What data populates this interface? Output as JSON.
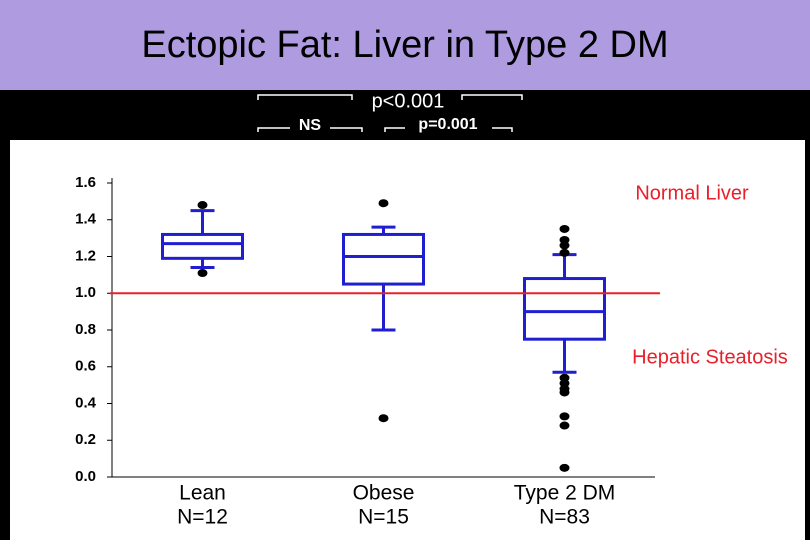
{
  "chart_data": {
    "type": "box",
    "title": "Ectopic Fat:  Liver in Type 2 DM",
    "comparisons": [
      "NS",
      "p<0.001",
      "p=0.001"
    ],
    "categories": [
      "Lean",
      "Obese",
      "Type 2 DM"
    ],
    "n_labels": [
      "N=12",
      "N=15",
      "N=83"
    ],
    "color": "#1f1fd0",
    "boxes": [
      {
        "min": 1.14,
        "q1": 1.19,
        "median": 1.27,
        "q3": 1.32,
        "max": 1.45,
        "outliers": [
          1.48,
          1.11
        ]
      },
      {
        "min": 0.8,
        "q1": 1.05,
        "median": 1.2,
        "q3": 1.32,
        "max": 1.36,
        "outliers": [
          1.49,
          0.32
        ]
      },
      {
        "min": 0.57,
        "q1": 0.75,
        "median": 0.9,
        "q3": 1.08,
        "max": 1.21,
        "outliers": [
          1.35,
          1.29,
          1.26,
          1.22,
          0.54,
          0.51,
          0.48,
          0.46,
          0.33,
          0.28,
          0.05
        ]
      }
    ],
    "ylim": [
      0,
      1.6
    ],
    "yticks": [
      {
        "value": 0,
        "label": "0.0"
      },
      0.2,
      0.4,
      0.6,
      0.8,
      {
        "value": 1,
        "label": "1.0"
      },
      1.2,
      1.4,
      1.6
    ],
    "reference_line": {
      "value": 1,
      "color": "#e8202a"
    },
    "annotations": [
      "Normal Liver",
      "Hepatic Steatosis"
    ],
    "annotation_color": "#e8202a"
  }
}
